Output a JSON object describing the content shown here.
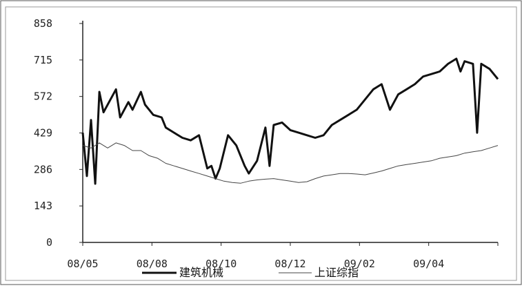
{
  "chart_data": {
    "type": "line",
    "title": "",
    "xlabel": "",
    "ylabel": "",
    "ylim": [
      0,
      858
    ],
    "yticks": [
      "0",
      "143",
      "286",
      "429",
      "572",
      "715",
      "858"
    ],
    "xticks": [
      "08/05",
      "08/08",
      "08/10",
      "08/12",
      "09/02",
      "09/04"
    ],
    "legend_position": "bottom",
    "series": [
      {
        "name": "建筑机械",
        "color": "#111111",
        "style": "solid-thick",
        "values": [
          [
            0,
            430
          ],
          [
            1,
            260
          ],
          [
            2,
            480
          ],
          [
            3,
            230
          ],
          [
            4,
            590
          ],
          [
            5,
            510
          ],
          [
            8,
            600
          ],
          [
            9,
            490
          ],
          [
            11,
            550
          ],
          [
            12,
            520
          ],
          [
            14,
            590
          ],
          [
            15,
            540
          ],
          [
            17,
            500
          ],
          [
            19,
            490
          ],
          [
            20,
            450
          ],
          [
            22,
            430
          ],
          [
            24,
            410
          ],
          [
            26,
            400
          ],
          [
            28,
            420
          ],
          [
            30,
            290
          ],
          [
            31,
            300
          ],
          [
            32,
            250
          ],
          [
            33,
            290
          ],
          [
            35,
            420
          ],
          [
            37,
            380
          ],
          [
            39,
            300
          ],
          [
            40,
            270
          ],
          [
            42,
            320
          ],
          [
            44,
            450
          ],
          [
            45,
            300
          ],
          [
            46,
            460
          ],
          [
            48,
            470
          ],
          [
            50,
            440
          ],
          [
            52,
            430
          ],
          [
            54,
            420
          ],
          [
            56,
            410
          ],
          [
            58,
            420
          ],
          [
            60,
            460
          ],
          [
            62,
            480
          ],
          [
            64,
            500
          ],
          [
            66,
            520
          ],
          [
            68,
            560
          ],
          [
            70,
            600
          ],
          [
            72,
            620
          ],
          [
            74,
            520
          ],
          [
            76,
            580
          ],
          [
            78,
            600
          ],
          [
            80,
            620
          ],
          [
            82,
            650
          ],
          [
            84,
            660
          ],
          [
            86,
            670
          ],
          [
            88,
            700
          ],
          [
            90,
            720
          ],
          [
            91,
            670
          ],
          [
            92,
            710
          ],
          [
            94,
            700
          ],
          [
            95,
            430
          ],
          [
            96,
            700
          ],
          [
            98,
            680
          ],
          [
            100,
            640
          ]
        ]
      },
      {
        "name": "上证综指",
        "color": "#444444",
        "style": "thin",
        "values": [
          [
            0,
            380
          ],
          [
            2,
            370
          ],
          [
            4,
            390
          ],
          [
            6,
            370
          ],
          [
            8,
            390
          ],
          [
            10,
            380
          ],
          [
            12,
            360
          ],
          [
            14,
            360
          ],
          [
            16,
            340
          ],
          [
            18,
            330
          ],
          [
            20,
            310
          ],
          [
            22,
            300
          ],
          [
            24,
            290
          ],
          [
            26,
            280
          ],
          [
            28,
            270
          ],
          [
            30,
            260
          ],
          [
            32,
            250
          ],
          [
            34,
            240
          ],
          [
            36,
            235
          ],
          [
            38,
            232
          ],
          [
            40,
            240
          ],
          [
            42,
            245
          ],
          [
            44,
            248
          ],
          [
            46,
            250
          ],
          [
            48,
            245
          ],
          [
            50,
            240
          ],
          [
            52,
            235
          ],
          [
            54,
            238
          ],
          [
            56,
            250
          ],
          [
            58,
            260
          ],
          [
            60,
            265
          ],
          [
            62,
            270
          ],
          [
            64,
            270
          ],
          [
            66,
            268
          ],
          [
            68,
            265
          ],
          [
            70,
            272
          ],
          [
            72,
            280
          ],
          [
            74,
            290
          ],
          [
            76,
            300
          ],
          [
            78,
            305
          ],
          [
            80,
            310
          ],
          [
            82,
            315
          ],
          [
            84,
            320
          ],
          [
            86,
            330
          ],
          [
            88,
            335
          ],
          [
            90,
            340
          ],
          [
            92,
            350
          ],
          [
            94,
            355
          ],
          [
            96,
            360
          ],
          [
            98,
            370
          ],
          [
            100,
            380
          ]
        ]
      }
    ]
  }
}
